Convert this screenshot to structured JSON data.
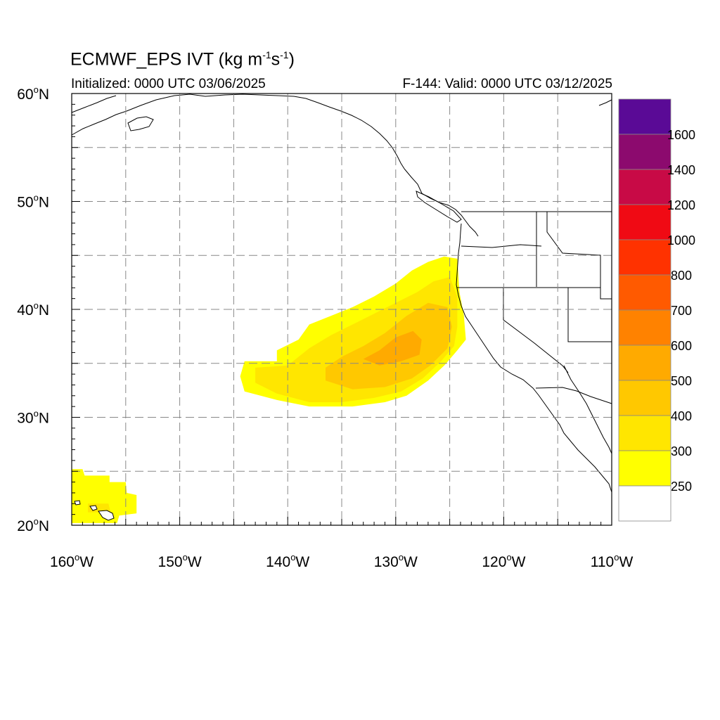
{
  "title": {
    "main": "ECMWF_EPS IVT (kg m",
    "exp1": "-1",
    "mid": "s",
    "exp2": "-1",
    "close": ")"
  },
  "init_label": "Initialized: 0000 UTC 03/06/2025",
  "valid_label": "F-144: Valid: 0000 UTC 03/12/2025",
  "map": {
    "lon_min": -160,
    "lon_max": -110,
    "lat_min": 20,
    "lat_max": 60,
    "lat_labels": [
      {
        "lat": 60,
        "text": "60",
        "hemi": "N"
      },
      {
        "lat": 50,
        "text": "50",
        "hemi": "N"
      },
      {
        "lat": 40,
        "text": "40",
        "hemi": "N"
      },
      {
        "lat": 30,
        "text": "30",
        "hemi": "N"
      },
      {
        "lat": 20,
        "text": "20",
        "hemi": "N"
      }
    ],
    "lon_labels": [
      {
        "lon": -160,
        "text": "160",
        "hemi": "W"
      },
      {
        "lon": -150,
        "text": "150",
        "hemi": "W"
      },
      {
        "lon": -140,
        "text": "140",
        "hemi": "W"
      },
      {
        "lon": -130,
        "text": "130",
        "hemi": "W"
      },
      {
        "lon": -120,
        "text": "120",
        "hemi": "W"
      },
      {
        "lon": -110,
        "text": "110",
        "hemi": "W"
      }
    ]
  },
  "colorbar": {
    "labels": [
      "1600",
      "1400",
      "1200",
      "1000",
      "800",
      "700",
      "600",
      "500",
      "400",
      "300",
      "250"
    ],
    "colors": [
      "#5a0a96",
      "#8c0a6e",
      "#c80a46",
      "#f00a14",
      "#ff3200",
      "#ff5a00",
      "#ff8200",
      "#ffaa00",
      "#ffc800",
      "#ffe600",
      "#ffff00",
      "#ffffff"
    ]
  },
  "ivt_layers": [
    {
      "level": "250",
      "color": "#ffff00",
      "region": "ar-outer"
    },
    {
      "level": "300",
      "color": "#ffe600",
      "region": "ar-300"
    },
    {
      "level": "400",
      "color": "#ffc800",
      "region": "ar-400"
    },
    {
      "level": "500",
      "color": "#ffaa00",
      "region": "ar-500"
    },
    {
      "level": "250",
      "color": "#ffff00",
      "region": "hawaii"
    },
    {
      "level": "300",
      "color": "#ffe600",
      "region": "hawaii-300"
    }
  ]
}
